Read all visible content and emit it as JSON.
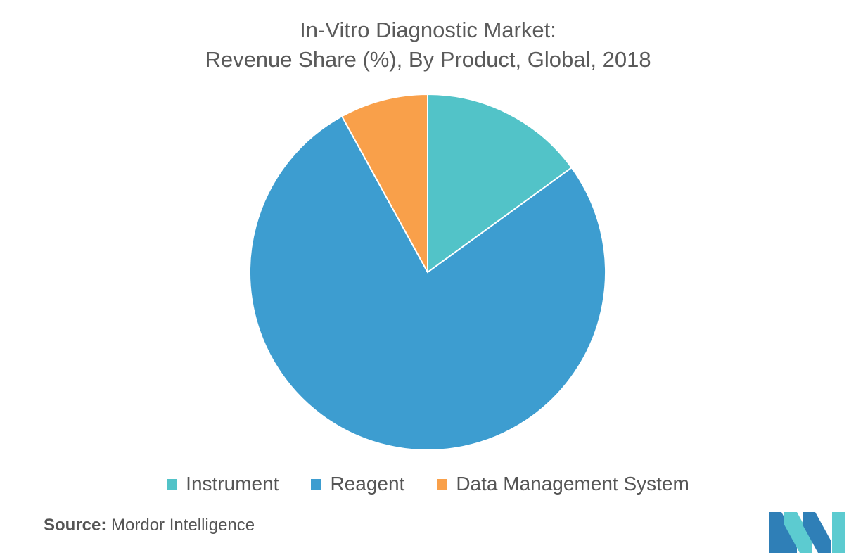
{
  "chart_data": {
    "type": "pie",
    "title": "In-Vitro Diagnostic Market:",
    "subtitle": "Revenue Share (%), By Product, Global, 2018",
    "categories": [
      "Instrument",
      "Reagent",
      "Data Management System"
    ],
    "values": [
      15,
      77,
      8
    ],
    "colors": [
      "#52c3c8",
      "#3d9dd0",
      "#f9a04a"
    ],
    "legend_position": "bottom"
  },
  "source": {
    "label": "Source:",
    "text": "Mordor Intelligence"
  },
  "logo": {
    "colors": [
      "#2f7fb7",
      "#5ccbd0"
    ]
  }
}
